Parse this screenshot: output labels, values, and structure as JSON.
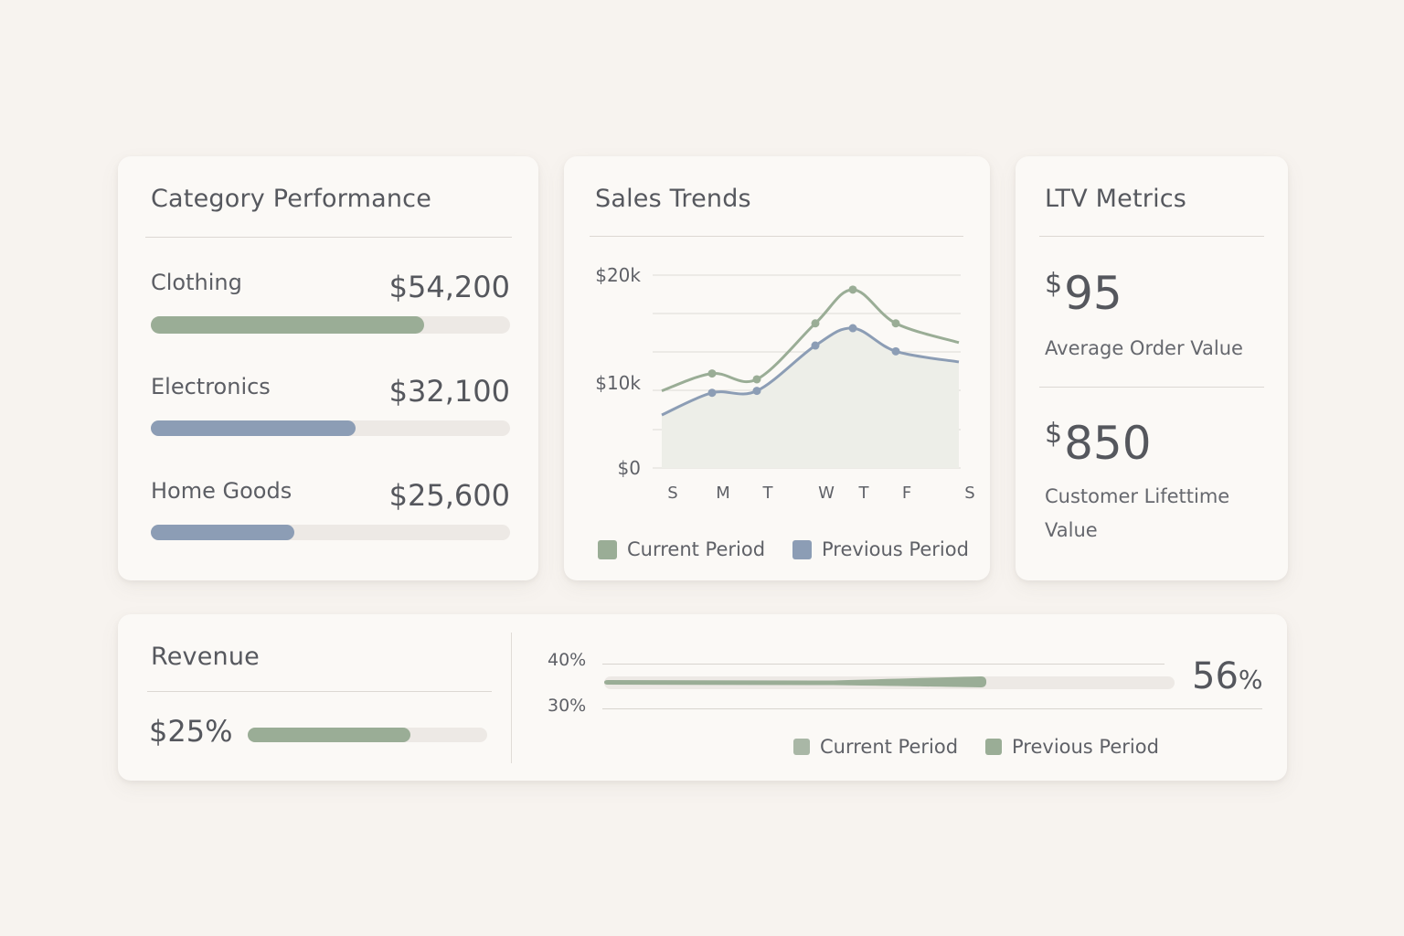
{
  "colors": {
    "background": "#f7f3ef",
    "card": "#fbf9f6",
    "green": "#9aad96",
    "blue": "#8c9db5",
    "track": "#ede9e5",
    "area": "#edeee8"
  },
  "category": {
    "title": "Category Performance",
    "items": [
      {
        "label": "Clothing",
        "value": "$54,200",
        "fraction": 0.76,
        "color": "#9aad96"
      },
      {
        "label": "Electronics",
        "value": "$32,100",
        "fraction": 0.57,
        "color": "#8c9db5"
      },
      {
        "label": "Home Goods",
        "value": "$25,600",
        "fraction": 0.4,
        "color": "#8c9db5"
      }
    ]
  },
  "sales": {
    "title": "Sales Trends",
    "legend": [
      {
        "label": "Current Period",
        "color": "#9aad96"
      },
      {
        "label": "Previous Period",
        "color": "#8c9db5"
      }
    ]
  },
  "chart_data": {
    "type": "line",
    "title": "Sales Trends",
    "x": [
      "S",
      "M",
      "T",
      "W",
      "T",
      "F",
      "S"
    ],
    "yticks": [
      "$20k",
      "$10k",
      "$0"
    ],
    "ylim": [
      0,
      20000
    ],
    "grid": true,
    "legend_position": "bottom",
    "series": [
      {
        "name": "Current Period",
        "color": "#9aad96",
        "values": [
          8000,
          9800,
          9200,
          15000,
          18500,
          15000,
          13000
        ]
      },
      {
        "name": "Previous Period",
        "color": "#8c9db5",
        "values": [
          5500,
          7800,
          8000,
          12700,
          14500,
          12100,
          11000
        ]
      }
    ]
  },
  "ltv": {
    "title": "LTV Metrics",
    "metrics": [
      {
        "currency": "$",
        "amount": "95",
        "label": "Average Order Value"
      },
      {
        "currency": "$",
        "amount": "850",
        "label": "Customer Lifettime Value"
      }
    ]
  },
  "revenue": {
    "title": "Revenue",
    "amount": "$25%",
    "fraction": 0.68,
    "axis_top": "40%",
    "axis_bottom": "30%",
    "progress_fraction": 0.67,
    "percent_number": "56",
    "percent_unit": "%",
    "legend": [
      {
        "label": "Current Period",
        "color": "#a9b7a6"
      },
      {
        "label": "Previous Period",
        "color": "#9aad96"
      }
    ]
  }
}
